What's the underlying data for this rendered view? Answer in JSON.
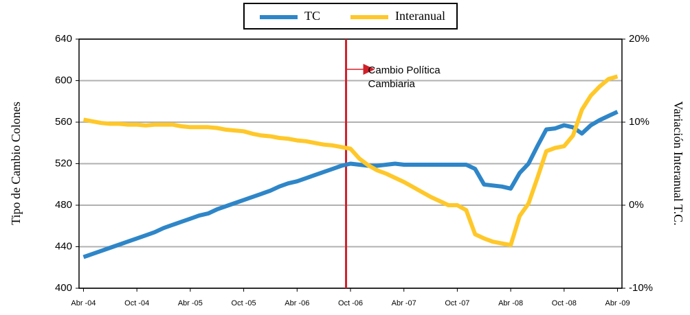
{
  "chart_data": {
    "type": "line",
    "categories": [
      "Abr -04",
      null,
      null,
      null,
      null,
      null,
      "Oct -04",
      null,
      null,
      null,
      null,
      null,
      "Abr -05",
      null,
      null,
      null,
      null,
      null,
      "Oct -05",
      null,
      null,
      null,
      null,
      null,
      "Abr -06",
      null,
      null,
      null,
      null,
      null,
      "Oct -06",
      null,
      null,
      null,
      null,
      null,
      "Abr -07",
      null,
      null,
      null,
      null,
      null,
      "Oct -07",
      null,
      null,
      null,
      null,
      null,
      "Abr -08",
      null,
      null,
      null,
      null,
      null,
      "Oct -08",
      null,
      null,
      null,
      null,
      null,
      "Abr -09"
    ],
    "series": [
      {
        "name": "TC",
        "color": "#2e86c8",
        "values": [
          430,
          433,
          436,
          439,
          442,
          445,
          448,
          451,
          454,
          458,
          461,
          464,
          467,
          470,
          472,
          476,
          479,
          482,
          485,
          488,
          491,
          494,
          498,
          501,
          503,
          506,
          509,
          512,
          515,
          518,
          520,
          519,
          518,
          518,
          519,
          520,
          519,
          519,
          519,
          519,
          519,
          519,
          519,
          519,
          515,
          500,
          499,
          498,
          496,
          511,
          520,
          537,
          553,
          554,
          557,
          555,
          549,
          557,
          562,
          566,
          570
        ]
      },
      {
        "name": "Interanual",
        "color": "#ffc82a",
        "axis": "y2",
        "values": [
          10.3,
          10.1,
          9.9,
          9.8,
          9.8,
          9.7,
          9.7,
          9.6,
          9.7,
          9.7,
          9.7,
          9.5,
          9.4,
          9.4,
          9.4,
          9.3,
          9.1,
          9.0,
          8.9,
          8.6,
          8.4,
          8.3,
          8.1,
          8.0,
          7.8,
          7.7,
          7.5,
          7.3,
          7.2,
          7.0,
          6.8,
          5.6,
          4.8,
          4.2,
          3.8,
          3.3,
          2.8,
          2.2,
          1.6,
          1.0,
          0.5,
          0.0,
          0.0,
          -0.6,
          -3.5,
          -4.0,
          -4.4,
          -4.6,
          -4.8,
          -1.3,
          0.2,
          3.3,
          6.5,
          6.9,
          7.1,
          8.4,
          11.5,
          13.2,
          14.3,
          15.2,
          15.5
        ]
      }
    ],
    "ylabel": "Tipo de Cambio Colones",
    "y2label": "Variación Interanual T.C.",
    "ylim": [
      400,
      640
    ],
    "yticks": [
      400,
      440,
      480,
      520,
      560,
      600,
      640
    ],
    "y2lim": [
      -10,
      20
    ],
    "y2ticks": [
      {
        "value": -10,
        "label": "-10%"
      },
      {
        "value": 0,
        "label": "0%"
      },
      {
        "value": 10,
        "label": "10%"
      },
      {
        "value": 20,
        "label": "20%"
      }
    ],
    "grid": true,
    "legend": "top",
    "annotation": {
      "x": "Oct -06",
      "color": "#d0202a",
      "lines": [
        "Cambio Política",
        "Cambiaria"
      ]
    }
  }
}
